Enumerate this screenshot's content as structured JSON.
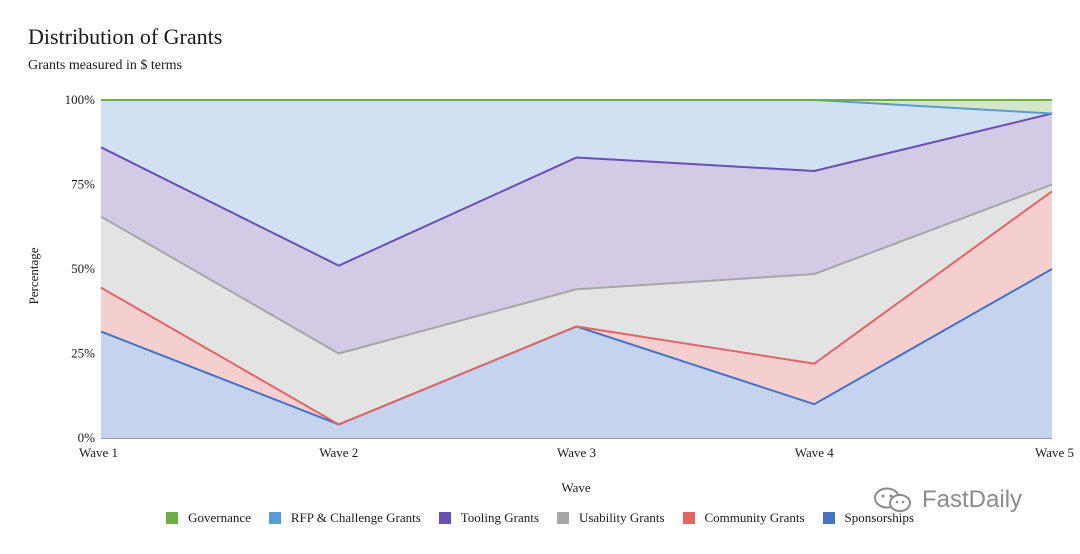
{
  "chart_data": {
    "type": "area",
    "stacked": "percent",
    "title": "Distribution of Grants",
    "subtitle": "Grants measured in $ terms",
    "xlabel": "Wave",
    "ylabel": "Percentage",
    "categories": [
      "Wave 1",
      "Wave 2",
      "Wave 3",
      "Wave 4",
      "Wave 5"
    ],
    "y_ticks": [
      "0%",
      "25%",
      "50%",
      "75%",
      "100%"
    ],
    "ylim": [
      0,
      100
    ],
    "grid": true,
    "legend_position": "bottom",
    "series": [
      {
        "name": "Sponsorships",
        "color": "#4472c4",
        "fill": "#c5d3ee",
        "values": [
          31.5,
          4,
          33,
          10,
          50
        ]
      },
      {
        "name": "Community Grants",
        "color": "#e06666",
        "fill": "#f5cfd0",
        "values": [
          13,
          0,
          0,
          12,
          23
        ]
      },
      {
        "name": "Usability Grants",
        "color": "#a6a6a6",
        "fill": "#e3e3e3",
        "values": [
          21,
          21,
          11,
          26.5,
          2
        ]
      },
      {
        "name": "Tooling Grants",
        "color": "#6a4fb3",
        "fill": "#d3cbe6",
        "values": [
          20.5,
          26,
          39,
          30.5,
          21
        ]
      },
      {
        "name": "RFP & Challenge Grants",
        "color": "#5b9bd5",
        "fill": "#cfe1f3",
        "values": [
          14,
          49,
          17,
          21,
          0
        ]
      },
      {
        "name": "Governance",
        "color": "#70ad47",
        "fill": "#d4e8c8",
        "values": [
          0,
          0,
          0,
          0,
          4
        ]
      }
    ]
  },
  "legend_order": [
    "Governance",
    "RFP & Challenge Grants",
    "Tooling Grants",
    "Usability Grants",
    "Community Grants",
    "Sponsorships"
  ],
  "watermark": {
    "text": "FastDaily",
    "icon": "wechat-icon"
  }
}
